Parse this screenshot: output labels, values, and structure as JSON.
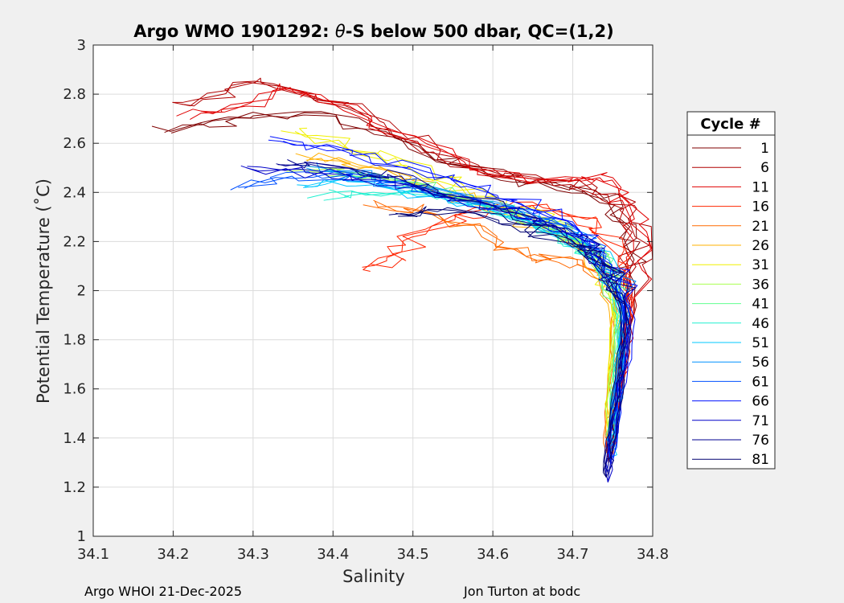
{
  "chart_data": {
    "type": "line",
    "title_prefix": "Argo WMO 1901292: ",
    "title_symbol": "θ",
    "title_suffix": "-S below 500 dbar,  QC=(1,2)",
    "xlabel": "Salinity",
    "ylabel": "Potential Temperature (˚C)",
    "xlim": [
      34.1,
      34.8
    ],
    "ylim": [
      1,
      3
    ],
    "xticks": [
      "34.1",
      "34.2",
      "34.3",
      "34.4",
      "34.5",
      "34.6",
      "34.7",
      "34.8"
    ],
    "yticks": [
      "1",
      "1.2",
      "1.4",
      "1.6",
      "1.8",
      "2",
      "2.2",
      "2.4",
      "2.6",
      "2.8",
      "3"
    ],
    "grid": true,
    "legend_title": "Cycle #",
    "legend_position": "outside-right",
    "legend": [
      {
        "name": "1",
        "color": "#7f0000"
      },
      {
        "name": "6",
        "color": "#b00000"
      },
      {
        "name": "11",
        "color": "#e00000"
      },
      {
        "name": "16",
        "color": "#ff2400"
      },
      {
        "name": "21",
        "color": "#ff6a00"
      },
      {
        "name": "26",
        "color": "#ffb000"
      },
      {
        "name": "31",
        "color": "#f0f000"
      },
      {
        "name": "36",
        "color": "#a8ff50"
      },
      {
        "name": "41",
        "color": "#60ff90"
      },
      {
        "name": "46",
        "color": "#20f0d0"
      },
      {
        "name": "51",
        "color": "#00c8ff"
      },
      {
        "name": "56",
        "color": "#0090ff"
      },
      {
        "name": "61",
        "color": "#0050ff"
      },
      {
        "name": "66",
        "color": "#0010ff"
      },
      {
        "name": "71",
        "color": "#0000c8"
      },
      {
        "name": "76",
        "color": "#000090"
      },
      {
        "name": "81",
        "color": "#000070"
      }
    ],
    "base_curve": [
      [
        34.2,
        2.66
      ],
      [
        34.28,
        2.72
      ],
      [
        34.36,
        2.7
      ],
      [
        34.44,
        2.66
      ],
      [
        34.5,
        2.56
      ],
      [
        34.56,
        2.49
      ],
      [
        34.62,
        2.44
      ],
      [
        34.67,
        2.41
      ],
      [
        34.71,
        2.39
      ],
      [
        34.74,
        2.36
      ],
      [
        34.762,
        2.3
      ],
      [
        34.772,
        2.2
      ],
      [
        34.772,
        2.05
      ],
      [
        34.77,
        1.9
      ],
      [
        34.765,
        1.78
      ],
      [
        34.757,
        1.62
      ],
      [
        34.75,
        1.45
      ],
      [
        34.744,
        1.28
      ]
    ],
    "series": [
      {
        "name": "1",
        "color": "#7f0000",
        "values": [
          [
            34.19,
            2.65
          ],
          [
            34.26,
            2.68
          ],
          [
            34.32,
            2.72
          ],
          [
            34.4,
            2.7
          ],
          [
            34.46,
            2.64
          ],
          [
            34.52,
            2.55
          ],
          [
            34.58,
            2.49
          ],
          [
            34.64,
            2.44
          ],
          [
            34.7,
            2.41
          ],
          [
            34.74,
            2.38
          ],
          [
            34.765,
            2.3
          ],
          [
            34.775,
            2.18
          ],
          [
            34.774,
            2.02
          ],
          [
            34.769,
            1.88
          ],
          [
            34.762,
            1.74
          ],
          [
            34.755,
            1.58
          ],
          [
            34.749,
            1.42
          ],
          [
            34.745,
            1.3
          ]
        ]
      },
      {
        "name": "6",
        "color": "#b00000",
        "values": [
          [
            34.2,
            2.76
          ],
          [
            34.26,
            2.8
          ],
          [
            34.3,
            2.85
          ],
          [
            34.36,
            2.8
          ],
          [
            34.42,
            2.74
          ],
          [
            34.48,
            2.64
          ],
          [
            34.54,
            2.55
          ],
          [
            34.6,
            2.48
          ],
          [
            34.66,
            2.46
          ],
          [
            34.7,
            2.43
          ],
          [
            34.74,
            2.4
          ],
          [
            34.768,
            2.32
          ],
          [
            34.778,
            2.2
          ],
          [
            34.776,
            2.04
          ],
          [
            34.77,
            1.88
          ],
          [
            34.764,
            1.76
          ],
          [
            34.756,
            1.6
          ],
          [
            34.75,
            1.45
          ],
          [
            34.746,
            1.33
          ]
        ]
      },
      {
        "name": "11",
        "color": "#e00000",
        "values": [
          [
            34.22,
            2.71
          ],
          [
            34.29,
            2.74
          ],
          [
            34.33,
            2.83
          ],
          [
            34.38,
            2.79
          ],
          [
            34.44,
            2.71
          ],
          [
            34.5,
            2.62
          ],
          [
            34.56,
            2.53
          ],
          [
            34.62,
            2.47
          ],
          [
            34.68,
            2.45
          ],
          [
            34.72,
            2.46
          ],
          [
            34.745,
            2.44
          ],
          [
            34.77,
            2.35
          ],
          [
            34.78,
            2.22
          ],
          [
            34.778,
            2.08
          ],
          [
            34.772,
            1.94
          ],
          [
            34.768,
            1.8
          ],
          [
            34.758,
            1.64
          ],
          [
            34.752,
            1.48
          ],
          [
            34.748,
            1.36
          ]
        ]
      },
      {
        "name": "16",
        "color": "#ff2400",
        "values": [
          [
            34.44,
            2.09
          ],
          [
            34.48,
            2.13
          ],
          [
            34.5,
            2.22
          ],
          [
            34.55,
            2.29
          ],
          [
            34.6,
            2.33
          ],
          [
            34.65,
            2.36
          ],
          [
            34.7,
            2.3
          ],
          [
            34.73,
            2.24
          ],
          [
            34.76,
            2.14
          ],
          [
            34.772,
            2.02
          ],
          [
            34.77,
            1.88
          ],
          [
            34.765,
            1.76
          ],
          [
            34.756,
            1.6
          ],
          [
            34.749,
            1.44
          ],
          [
            34.745,
            1.32
          ]
        ]
      },
      {
        "name": "21",
        "color": "#ff6a00",
        "values": [
          [
            34.45,
            2.35
          ],
          [
            34.5,
            2.33
          ],
          [
            34.56,
            2.28
          ],
          [
            34.6,
            2.2
          ],
          [
            34.64,
            2.14
          ],
          [
            34.68,
            2.12
          ],
          [
            34.72,
            2.1
          ],
          [
            34.745,
            2.04
          ],
          [
            34.755,
            1.92
          ],
          [
            34.752,
            1.78
          ],
          [
            34.748,
            1.62
          ],
          [
            34.745,
            1.46
          ],
          [
            34.742,
            1.34
          ]
        ]
      },
      {
        "name": "26",
        "color": "#ffb000",
        "values": [
          [
            34.36,
            2.55
          ],
          [
            34.42,
            2.53
          ],
          [
            34.48,
            2.47
          ],
          [
            34.54,
            2.4
          ],
          [
            34.6,
            2.33
          ],
          [
            34.66,
            2.26
          ],
          [
            34.7,
            2.2
          ],
          [
            34.73,
            2.12
          ],
          [
            34.748,
            2.0
          ],
          [
            34.752,
            1.86
          ],
          [
            34.75,
            1.7
          ],
          [
            34.746,
            1.55
          ],
          [
            34.743,
            1.4
          ]
        ]
      },
      {
        "name": "31",
        "color": "#f0f000",
        "values": [
          [
            34.35,
            2.66
          ],
          [
            34.4,
            2.6
          ],
          [
            34.46,
            2.55
          ],
          [
            34.52,
            2.47
          ],
          [
            34.58,
            2.4
          ],
          [
            34.64,
            2.32
          ],
          [
            34.69,
            2.25
          ],
          [
            34.725,
            2.15
          ],
          [
            34.745,
            2.04
          ],
          [
            34.752,
            1.9
          ],
          [
            34.75,
            1.74
          ],
          [
            34.747,
            1.58
          ],
          [
            34.744,
            1.44
          ]
        ]
      },
      {
        "name": "36",
        "color": "#a8ff50",
        "values": [
          [
            34.36,
            2.5
          ],
          [
            34.42,
            2.48
          ],
          [
            34.48,
            2.45
          ],
          [
            34.54,
            2.4
          ],
          [
            34.6,
            2.35
          ],
          [
            34.66,
            2.28
          ],
          [
            34.7,
            2.22
          ],
          [
            34.73,
            2.14
          ],
          [
            34.748,
            2.02
          ],
          [
            34.755,
            1.88
          ],
          [
            34.752,
            1.72
          ],
          [
            34.748,
            1.56
          ],
          [
            34.745,
            1.42
          ]
        ]
      },
      {
        "name": "41",
        "color": "#60ff90",
        "values": [
          [
            34.4,
            2.47
          ],
          [
            34.46,
            2.46
          ],
          [
            34.52,
            2.42
          ],
          [
            34.58,
            2.37
          ],
          [
            34.63,
            2.31
          ],
          [
            34.68,
            2.24
          ],
          [
            34.72,
            2.17
          ],
          [
            34.742,
            2.08
          ],
          [
            34.756,
            1.96
          ],
          [
            34.758,
            1.82
          ],
          [
            34.754,
            1.66
          ],
          [
            34.75,
            1.5
          ],
          [
            34.746,
            1.38
          ]
        ]
      },
      {
        "name": "46",
        "color": "#20f0d0",
        "values": [
          [
            34.38,
            2.39
          ],
          [
            34.44,
            2.4
          ],
          [
            34.5,
            2.39
          ],
          [
            34.56,
            2.36
          ],
          [
            34.62,
            2.31
          ],
          [
            34.67,
            2.24
          ],
          [
            34.71,
            2.17
          ],
          [
            34.738,
            2.09
          ],
          [
            34.755,
            1.98
          ],
          [
            34.76,
            1.84
          ],
          [
            34.756,
            1.68
          ],
          [
            34.751,
            1.52
          ],
          [
            34.747,
            1.4
          ]
        ]
      },
      {
        "name": "51",
        "color": "#00c8ff",
        "values": [
          [
            34.35,
            2.44
          ],
          [
            34.41,
            2.44
          ],
          [
            34.47,
            2.42
          ],
          [
            34.53,
            2.38
          ],
          [
            34.59,
            2.34
          ],
          [
            34.64,
            2.28
          ],
          [
            34.69,
            2.22
          ],
          [
            34.728,
            2.14
          ],
          [
            34.752,
            2.03
          ],
          [
            34.762,
            1.9
          ],
          [
            34.76,
            1.74
          ],
          [
            34.755,
            1.58
          ],
          [
            34.75,
            1.42
          ],
          [
            34.746,
            1.32
          ]
        ]
      },
      {
        "name": "56",
        "color": "#0090ff",
        "values": [
          [
            34.37,
            2.5
          ],
          [
            34.43,
            2.47
          ],
          [
            34.49,
            2.43
          ],
          [
            34.55,
            2.39
          ],
          [
            34.61,
            2.35
          ],
          [
            34.66,
            2.3
          ],
          [
            34.7,
            2.25
          ],
          [
            34.735,
            2.16
          ],
          [
            34.756,
            2.04
          ],
          [
            34.765,
            1.9
          ],
          [
            34.762,
            1.74
          ],
          [
            34.756,
            1.58
          ],
          [
            34.75,
            1.44
          ],
          [
            34.746,
            1.34
          ]
        ]
      },
      {
        "name": "61",
        "color": "#0050ff",
        "values": [
          [
            34.29,
            2.42
          ],
          [
            34.35,
            2.46
          ],
          [
            34.41,
            2.48
          ],
          [
            34.47,
            2.45
          ],
          [
            34.53,
            2.4
          ],
          [
            34.59,
            2.36
          ],
          [
            34.64,
            2.31
          ],
          [
            34.69,
            2.26
          ],
          [
            34.73,
            2.18
          ],
          [
            34.756,
            2.06
          ],
          [
            34.768,
            1.92
          ],
          [
            34.765,
            1.76
          ],
          [
            34.758,
            1.6
          ],
          [
            34.752,
            1.44
          ],
          [
            34.747,
            1.3
          ]
        ]
      },
      {
        "name": "66",
        "color": "#0010ff",
        "values": [
          [
            34.32,
            2.62
          ],
          [
            34.38,
            2.59
          ],
          [
            34.44,
            2.55
          ],
          [
            34.5,
            2.49
          ],
          [
            34.56,
            2.43
          ],
          [
            34.62,
            2.38
          ],
          [
            34.67,
            2.31
          ],
          [
            34.71,
            2.25
          ],
          [
            34.74,
            2.15
          ],
          [
            34.762,
            2.02
          ],
          [
            34.77,
            1.88
          ],
          [
            34.766,
            1.72
          ],
          [
            34.758,
            1.56
          ],
          [
            34.751,
            1.4
          ],
          [
            34.745,
            1.26
          ]
        ]
      },
      {
        "name": "71",
        "color": "#0000c8",
        "values": [
          [
            34.3,
            2.49
          ],
          [
            34.36,
            2.48
          ],
          [
            34.42,
            2.46
          ],
          [
            34.48,
            2.43
          ],
          [
            34.54,
            2.39
          ],
          [
            34.6,
            2.34
          ],
          [
            34.66,
            2.28
          ],
          [
            34.7,
            2.22
          ],
          [
            34.735,
            2.13
          ],
          [
            34.76,
            2.0
          ],
          [
            34.768,
            1.86
          ],
          [
            34.764,
            1.7
          ],
          [
            34.756,
            1.54
          ],
          [
            34.749,
            1.38
          ],
          [
            34.744,
            1.22
          ]
        ]
      },
      {
        "name": "76",
        "color": "#000090",
        "values": [
          [
            34.34,
            2.52
          ],
          [
            34.4,
            2.5
          ],
          [
            34.46,
            2.47
          ],
          [
            34.52,
            2.42
          ],
          [
            34.58,
            2.37
          ],
          [
            34.64,
            2.31
          ],
          [
            34.69,
            2.24
          ],
          [
            34.73,
            2.14
          ],
          [
            34.756,
            2.02
          ],
          [
            34.766,
            1.88
          ],
          [
            34.763,
            1.72
          ],
          [
            34.755,
            1.56
          ],
          [
            34.748,
            1.4
          ],
          [
            34.743,
            1.26
          ]
        ]
      },
      {
        "name": "81",
        "color": "#000070",
        "values": [
          [
            34.47,
            2.3
          ],
          [
            34.52,
            2.33
          ],
          [
            34.58,
            2.31
          ],
          [
            34.63,
            2.26
          ],
          [
            34.68,
            2.22
          ],
          [
            34.72,
            2.16
          ],
          [
            34.748,
            2.06
          ],
          [
            34.762,
            1.94
          ],
          [
            34.764,
            1.8
          ],
          [
            34.758,
            1.64
          ],
          [
            34.751,
            1.48
          ],
          [
            34.745,
            1.34
          ],
          [
            34.742,
            1.24
          ]
        ]
      }
    ]
  },
  "footer": {
    "left": "Argo WHOI 21-Dec-2025",
    "right": "Jon Turton at bodc"
  }
}
